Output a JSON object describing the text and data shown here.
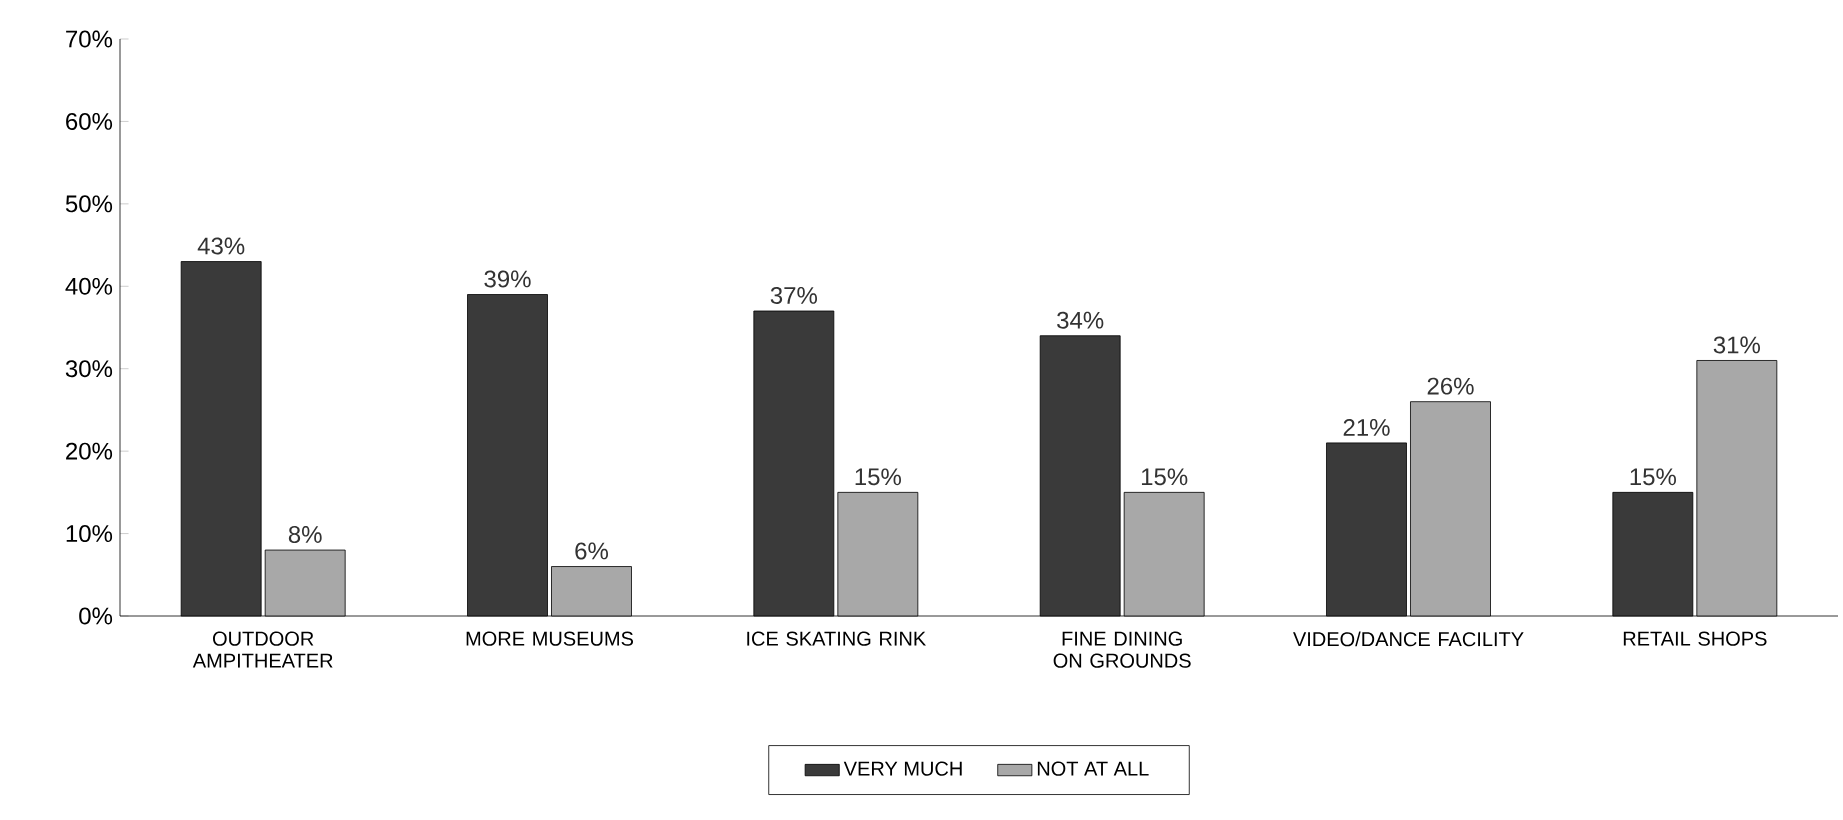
{
  "chart_data": {
    "type": "bar",
    "categories": [
      "OUTDOOR AMPITHEATER",
      "MORE MUSEUMS",
      "ICE SKATING RINK",
      "FINE DINING ON GROUNDS",
      "VIDEO/DANCE FACILITY",
      "RETAIL SHOPS"
    ],
    "series": [
      {
        "name": "VERY MUCH",
        "color": "#3a3a3a",
        "values": [
          43,
          39,
          37,
          34,
          21,
          15
        ],
        "value_labels": [
          "43%",
          "39%",
          "37%",
          "34%",
          "21%",
          "15%"
        ]
      },
      {
        "name": "NOT AT ALL",
        "color": "#a8a8a8",
        "values": [
          8,
          6,
          15,
          15,
          26,
          31
        ],
        "value_labels": [
          "8%",
          "6%",
          "15%",
          "15%",
          "26%",
          "31%"
        ]
      }
    ],
    "ylim": [
      0,
      70
    ],
    "yticks": [
      {
        "value": 0,
        "label": "0%"
      },
      {
        "value": 10,
        "label": "10%"
      },
      {
        "value": 20,
        "label": "20%"
      },
      {
        "value": 30,
        "label": "30%"
      },
      {
        "value": 40,
        "label": "40%"
      },
      {
        "value": 50,
        "label": "50%"
      },
      {
        "value": 60,
        "label": "60%"
      },
      {
        "value": 70,
        "label": "70%"
      }
    ],
    "legend": "bottom",
    "grid": false
  }
}
